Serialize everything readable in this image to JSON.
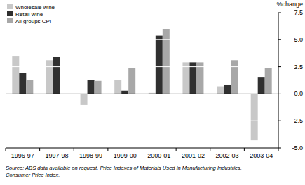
{
  "chart_data": {
    "type": "bar",
    "y_label": "%change",
    "categories": [
      "1996-97",
      "1997-98",
      "1998-99",
      "1999-00",
      "2000-01",
      "2001-02",
      "2002-03",
      "2003-04"
    ],
    "series": [
      {
        "name": "Wholesale wine",
        "color": "#c8c8c8",
        "values": [
          3.5,
          3.1,
          -1.0,
          1.3,
          0.1,
          2.9,
          0.7,
          -4.3
        ]
      },
      {
        "name": "Retail wine",
        "color": "#303030",
        "values": [
          1.9,
          3.4,
          1.3,
          0.3,
          5.4,
          2.9,
          0.8,
          1.5
        ]
      },
      {
        "name": "All groups CPI",
        "color": "#a8a8a8",
        "values": [
          1.3,
          0.0,
          1.2,
          2.4,
          6.0,
          2.9,
          3.1,
          2.4
        ]
      }
    ],
    "ylim": [
      -5.0,
      7.5
    ],
    "yticks": [
      {
        "value": -5.0,
        "label": "-5.0"
      },
      {
        "value": -2.5,
        "label": "-2.5"
      },
      {
        "value": 0,
        "label": "0.0"
      },
      {
        "value": 2.5,
        "label": "2.5"
      },
      {
        "value": 5.0,
        "label": "5.0"
      },
      {
        "value": 7.5,
        "label": "7.5"
      }
    ],
    "grid": true,
    "legend": "top-left",
    "source": [
      "Source: ABS data available on request, Price Indexes of Materials Used in Manufacturing Industries,",
      "Consumer Price Index."
    ]
  }
}
